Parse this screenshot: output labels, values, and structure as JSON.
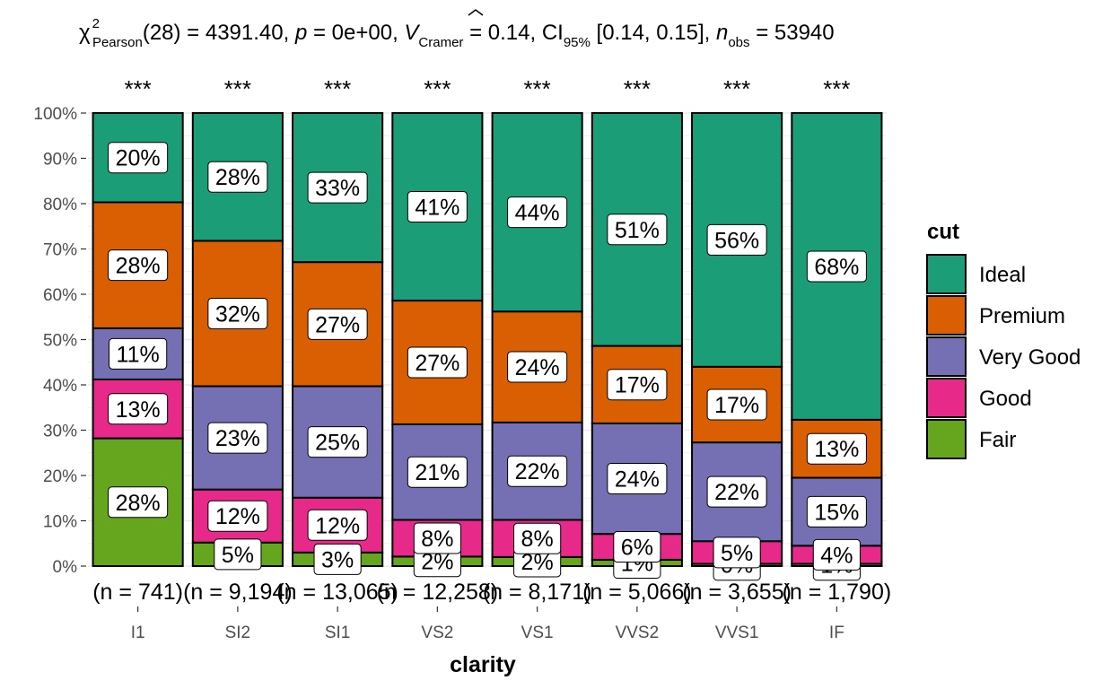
{
  "subtitle": {
    "chi_symbol": "χ",
    "chi_sup": "2",
    "chi_sub": "Pearson",
    "chi_value": "(28) = 4391.40, ",
    "p_symbol": "p",
    "p_value": " = 0e+00, ",
    "v_symbol": "V",
    "v_sub": "Cramer",
    "v_value": " = 0.14, CI",
    "ci_sub": "95%",
    "ci_value": " [0.14, 0.15], ",
    "n_symbol": "n",
    "n_sub": "obs",
    "n_value": " = 53940"
  },
  "chart_data": {
    "type": "bar",
    "stacked": true,
    "normalized": true,
    "categories": [
      "I1",
      "SI2",
      "SI1",
      "VS2",
      "VS1",
      "VVS2",
      "VVS1",
      "IF"
    ],
    "xlabel": "clarity",
    "ylabel": "",
    "ylim": [
      0,
      100
    ],
    "y_ticks": [
      "0%",
      "10%",
      "20%",
      "30%",
      "40%",
      "50%",
      "60%",
      "70%",
      "80%",
      "90%",
      "100%"
    ],
    "grid": true,
    "legend": {
      "title": "cut",
      "position": "right"
    },
    "series": [
      {
        "name": "Fair",
        "color": "#66A61E",
        "values": [
          28.2,
          5.2,
          3.0,
          2.1,
          2.0,
          1.4,
          0.5,
          0.5
        ],
        "labels": [
          "28%",
          "5%",
          "3%",
          "2%",
          "2%",
          "1%",
          "0%",
          "1%"
        ]
      },
      {
        "name": "Good",
        "color": "#E7298A",
        "values": [
          13.0,
          11.7,
          12.1,
          8.1,
          8.2,
          5.7,
          5.0,
          4.0
        ],
        "labels": [
          "13%",
          "12%",
          "12%",
          "8%",
          "8%",
          "6%",
          "5%",
          "4%"
        ]
      },
      {
        "name": "Very Good",
        "color": "#7570B3",
        "values": [
          11.3,
          22.8,
          24.6,
          21.1,
          21.5,
          24.4,
          21.8,
          15.0
        ],
        "labels": [
          "11%",
          "23%",
          "25%",
          "21%",
          "22%",
          "24%",
          "22%",
          "15%"
        ]
      },
      {
        "name": "Premium",
        "color": "#D95F02",
        "values": [
          27.8,
          32.1,
          27.4,
          27.3,
          24.5,
          17.1,
          16.7,
          12.8
        ],
        "labels": [
          "28%",
          "32%",
          "27%",
          "27%",
          "24%",
          "17%",
          "17%",
          "13%"
        ]
      },
      {
        "name": "Ideal",
        "color": "#1B9E77",
        "values": [
          19.7,
          28.2,
          32.9,
          41.4,
          43.8,
          51.4,
          56.0,
          67.7
        ],
        "labels": [
          "20%",
          "28%",
          "33%",
          "41%",
          "44%",
          "51%",
          "56%",
          "68%"
        ]
      }
    ],
    "counts": [
      "(n = 741)",
      "(n = 9,194)",
      "(n = 13,065)",
      "(n = 12,258)",
      "(n = 8,171)",
      "(n = 5,066)",
      "(n = 3,655)",
      "(n = 1,790)"
    ],
    "significance": [
      "***",
      "***",
      "***",
      "***",
      "***",
      "***",
      "***",
      "***"
    ],
    "legend_order": [
      "Ideal",
      "Premium",
      "Very Good",
      "Good",
      "Fair"
    ]
  }
}
